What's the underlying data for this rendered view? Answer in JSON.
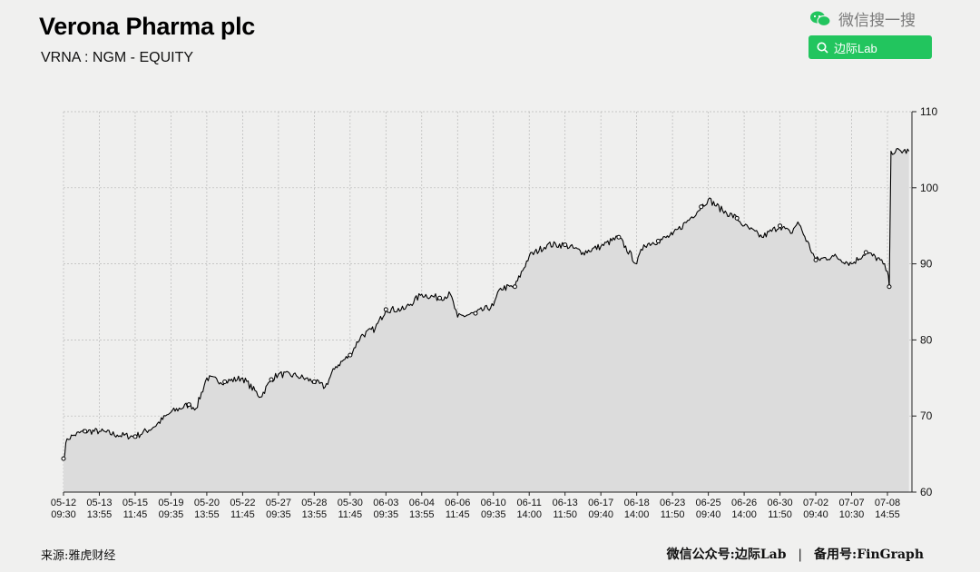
{
  "header": {
    "title": "Verona Pharma plc",
    "subtitle": "VRNA : NGM - EQUITY"
  },
  "wechat": {
    "label": "微信搜一搜",
    "search_text": "边际Lab"
  },
  "footer": {
    "source": "来源:雅虎财经",
    "account_prefix": "微信公众号:",
    "account_name": "边际Lab",
    "separator": "|",
    "backup_prefix": "备用号:",
    "backup_name": "FinGraph"
  },
  "colors": {
    "line": "#000000",
    "area": "#dcdcdc",
    "grid": "#b8b8b8",
    "wechat_green": "#22c55e"
  },
  "chart_data": {
    "type": "area",
    "y_axis_position": "right",
    "ylim": [
      60,
      110
    ],
    "yticks": [
      60,
      70,
      80,
      90,
      100,
      110
    ],
    "grid": true,
    "x_tick_labels": [
      [
        "05-12",
        "09:30"
      ],
      [
        "05-13",
        "13:55"
      ],
      [
        "05-15",
        "11:45"
      ],
      [
        "05-19",
        "09:35"
      ],
      [
        "05-20",
        "13:55"
      ],
      [
        "05-22",
        "11:45"
      ],
      [
        "05-27",
        "09:35"
      ],
      [
        "05-28",
        "13:55"
      ],
      [
        "05-30",
        "11:45"
      ],
      [
        "06-03",
        "09:35"
      ],
      [
        "06-04",
        "13:55"
      ],
      [
        "06-06",
        "11:45"
      ],
      [
        "06-10",
        "09:35"
      ],
      [
        "06-11",
        "14:00"
      ],
      [
        "06-13",
        "11:50"
      ],
      [
        "06-17",
        "09:40"
      ],
      [
        "06-18",
        "14:00"
      ],
      [
        "06-23",
        "11:50"
      ],
      [
        "06-25",
        "09:40"
      ],
      [
        "06-26",
        "14:00"
      ],
      [
        "06-30",
        "11:50"
      ],
      [
        "07-02",
        "09:40"
      ],
      [
        "07-07",
        "10:30"
      ],
      [
        "07-08",
        "14:55"
      ]
    ],
    "series": [
      {
        "x_tick_index": [
          0,
          0.1,
          0.3,
          0.6,
          1,
          1.5,
          2,
          2.5,
          3,
          3.5,
          3.7,
          4,
          4.5,
          5,
          5.5,
          5.8,
          6,
          6.5,
          7,
          7.3,
          7.6,
          8,
          8.3,
          8.7,
          9,
          9.5,
          10,
          10.5,
          10.8,
          11,
          11.5,
          12,
          12.2,
          12.6,
          13,
          13.5,
          14,
          14.5,
          15,
          15.5,
          16,
          16.2,
          16.6,
          17,
          17.5,
          17.8,
          18,
          18.4,
          18.8,
          19,
          19.5,
          20,
          20.3,
          20.5,
          21,
          21.5,
          22,
          22.4,
          22.8,
          23,
          23.05,
          23.1,
          23.6
        ],
        "values": [
          64.4,
          67,
          67.5,
          68,
          68,
          67.5,
          67.3,
          68.5,
          70.5,
          71.5,
          71,
          75,
          74.5,
          75,
          72.5,
          74.8,
          75.5,
          75.3,
          74.5,
          73.8,
          76.5,
          78,
          80.5,
          81.5,
          84,
          84,
          86,
          85.5,
          86,
          83,
          83.5,
          84.5,
          86.8,
          87,
          91,
          92.5,
          92.5,
          91.5,
          92.3,
          93.5,
          90,
          92.5,
          93,
          93.8,
          96,
          97.5,
          98.5,
          97,
          96,
          95,
          93.5,
          95,
          94,
          95.5,
          90.5,
          91,
          90,
          91.5,
          90.5,
          89,
          87,
          104.8,
          104.8
        ]
      }
    ]
  }
}
